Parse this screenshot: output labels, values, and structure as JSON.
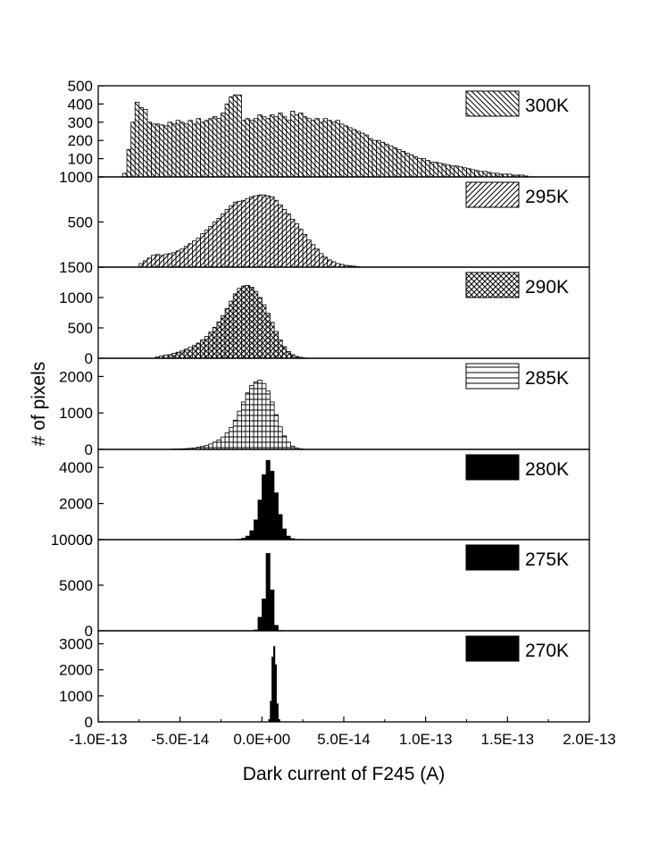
{
  "chart_data": {
    "type": "bar",
    "title": "",
    "xlabel": "Dark current  of F245 (A)",
    "ylabel": "# of pixels",
    "xlim": [
      -1e-13,
      2e-13
    ],
    "x_ticks": [
      -1e-13,
      -5e-14,
      0,
      5e-14,
      1e-13,
      1.5e-13,
      2e-13
    ],
    "x_tick_labels": [
      "-1.0E-13",
      "-5.0E-14",
      "0.0E+00",
      "5.0E-14",
      "1.0E-13",
      "1.5E-13",
      "2.0E-13"
    ],
    "bin_width": 2.5e-15,
    "grid": false,
    "legend_position": "top-right",
    "panels": [
      {
        "name": "300K",
        "pattern": "diag-back",
        "ylim": [
          0,
          500
        ],
        "y_ticks": [
          0,
          100,
          200,
          300,
          400,
          500
        ],
        "y_tick_labels": [
          "",
          "100",
          "200",
          "300",
          "400",
          "500"
        ],
        "start": -8.5e-14,
        "counts": [
          20,
          150,
          300,
          410,
          380,
          370,
          300,
          290,
          290,
          285,
          280,
          300,
          290,
          310,
          300,
          290,
          310,
          290,
          320,
          300,
          310,
          320,
          330,
          320,
          350,
          400,
          440,
          450,
          450,
          310,
          320,
          310,
          320,
          340,
          330,
          320,
          340,
          330,
          350,
          330,
          310,
          360,
          340,
          350,
          330,
          320,
          310,
          320,
          300,
          320,
          310,
          300,
          310,
          290,
          280,
          270,
          260,
          250,
          240,
          230,
          210,
          200,
          200,
          190,
          180,
          170,
          160,
          150,
          140,
          130,
          120,
          110,
          100,
          100,
          90,
          80,
          80,
          75,
          70,
          65,
          60,
          60,
          55,
          50,
          45,
          40,
          35,
          30,
          30,
          25,
          20,
          20,
          15,
          15,
          15,
          10,
          10,
          10,
          5
        ]
      },
      {
        "name": "295K",
        "pattern": "diag-fwd",
        "ylim": [
          0,
          1000
        ],
        "y_ticks": [
          0,
          500,
          1000
        ],
        "y_tick_labels": [
          "",
          "500",
          "1000"
        ],
        "start": -7.5e-14,
        "counts": [
          40,
          70,
          100,
          130,
          140,
          130,
          140,
          150,
          160,
          180,
          200,
          230,
          260,
          290,
          320,
          370,
          410,
          450,
          500,
          540,
          590,
          640,
          680,
          720,
          730,
          740,
          760,
          780,
          790,
          800,
          800,
          790,
          780,
          740,
          690,
          640,
          590,
          530,
          480,
          420,
          360,
          300,
          250,
          200,
          150,
          110,
          80,
          60,
          40,
          30,
          20,
          15,
          10,
          5
        ]
      },
      {
        "name": "290K",
        "pattern": "cross",
        "ylim": [
          0,
          1500
        ],
        "y_ticks": [
          0,
          500,
          1000,
          1500
        ],
        "y_tick_labels": [
          "0",
          "500",
          "1000",
          "1500"
        ],
        "start": -6.5e-14,
        "counts": [
          20,
          40,
          50,
          60,
          80,
          100,
          120,
          150,
          180,
          210,
          250,
          300,
          360,
          430,
          510,
          600,
          700,
          820,
          940,
          1060,
          1150,
          1190,
          1200,
          1170,
          1100,
          1000,
          880,
          740,
          590,
          440,
          300,
          190,
          110,
          60,
          30,
          15,
          5
        ]
      },
      {
        "name": "285K",
        "pattern": "horiz",
        "ylim": [
          0,
          2500
        ],
        "y_ticks": [
          0,
          1000,
          2000
        ],
        "y_tick_labels": [
          "0",
          "1000",
          "2000"
        ],
        "start": -5.5e-14,
        "counts": [
          10,
          10,
          15,
          20,
          30,
          40,
          60,
          80,
          110,
          150,
          200,
          260,
          340,
          450,
          600,
          800,
          1050,
          1300,
          1550,
          1750,
          1850,
          1900,
          1800,
          1600,
          1300,
          950,
          620,
          370,
          200,
          90,
          40,
          15
        ]
      },
      {
        "name": "280K",
        "pattern": "solid",
        "ylim": [
          0,
          5000
        ],
        "y_ticks": [
          0,
          2000,
          4000
        ],
        "y_tick_labels": [
          "0",
          "2000",
          "4000"
        ],
        "start": -1.5e-14,
        "counts": [
          30,
          80,
          200,
          500,
          1100,
          2200,
          3600,
          4400,
          3800,
          2600,
          1400,
          600,
          200,
          60,
          20
        ]
      },
      {
        "name": "275K",
        "pattern": "solid",
        "ylim": [
          0,
          10000
        ],
        "y_ticks": [
          0,
          5000,
          10000
        ],
        "y_tick_labels": [
          "0",
          "5000",
          "10000"
        ],
        "start": -5e-15,
        "counts": [
          100,
          1500,
          3500,
          8500,
          4500,
          600,
          50
        ]
      },
      {
        "name": "270K",
        "pattern": "solid",
        "ylim": [
          0,
          3500
        ],
        "y_ticks": [
          0,
          1000,
          2000,
          3000
        ],
        "y_tick_labels": [
          "0",
          "1000",
          "2000",
          "3000"
        ],
        "start": 4e-15,
        "bin_width": 1e-15,
        "counts": [
          100,
          800,
          2500,
          2900,
          2200,
          700,
          100
        ]
      }
    ]
  }
}
